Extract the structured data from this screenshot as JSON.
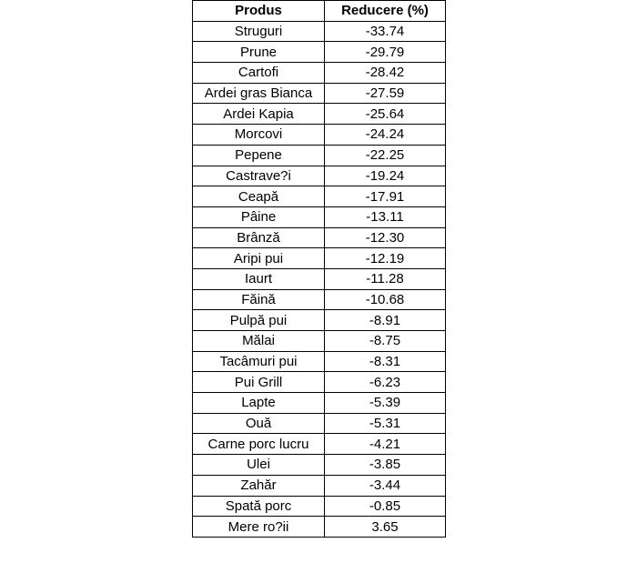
{
  "table": {
    "headers": [
      "Produs",
      "Reducere (%)"
    ],
    "rows": [
      [
        "Struguri",
        "-33.74"
      ],
      [
        "Prune",
        "-29.79"
      ],
      [
        "Cartofi",
        "-28.42"
      ],
      [
        "Ardei gras Bianca",
        "-27.59"
      ],
      [
        "Ardei Kapia",
        "-25.64"
      ],
      [
        "Morcovi",
        "-24.24"
      ],
      [
        "Pepene",
        "-22.25"
      ],
      [
        "Castrave?i",
        "-19.24"
      ],
      [
        "Ceapă",
        "-17.91"
      ],
      [
        "Pâine",
        "-13.11"
      ],
      [
        "Brânză",
        "-12.30"
      ],
      [
        "Aripi pui",
        "-12.19"
      ],
      [
        "Iaurt",
        "-11.28"
      ],
      [
        "Făină",
        "-10.68"
      ],
      [
        "Pulpă pui",
        "-8.91"
      ],
      [
        "Mălai",
        "-8.75"
      ],
      [
        "Tacâmuri pui",
        "-8.31"
      ],
      [
        "Pui Grill",
        "-6.23"
      ],
      [
        "Lapte",
        "-5.39"
      ],
      [
        "Ouă",
        "-5.31"
      ],
      [
        "Carne porc lucru",
        "-4.21"
      ],
      [
        "Ulei",
        "-3.85"
      ],
      [
        "Zahăr",
        "-3.44"
      ],
      [
        "Spată porc",
        "-0.85"
      ],
      [
        "Mere ro?ii",
        "3.65"
      ]
    ]
  }
}
